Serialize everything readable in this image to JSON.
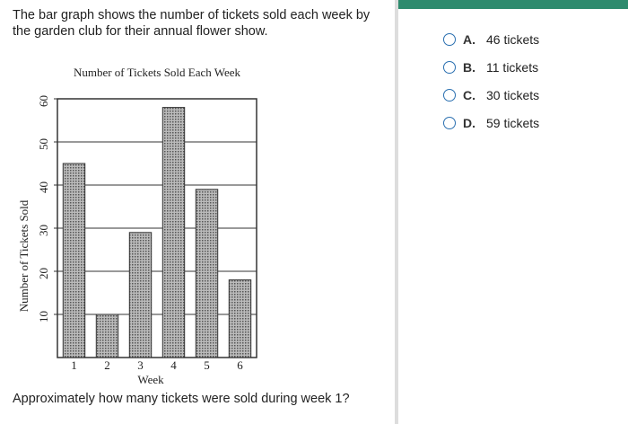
{
  "question": {
    "intro": "The bar graph shows the number of tickets sold each week by the garden club for their annual flower show.",
    "prompt": "Approximately how many tickets were sold during week 1?"
  },
  "chart_data": {
    "type": "bar",
    "title": "Number of Tickets Sold Each Week",
    "x_label": "Week",
    "y_label": "Number of Tickets Sold",
    "categories": [
      "1",
      "2",
      "3",
      "4",
      "5",
      "6"
    ],
    "values": [
      45,
      10,
      29,
      58,
      39,
      18
    ],
    "color": "#999999",
    "ylim": [
      0,
      60
    ],
    "yticks": [
      10,
      20,
      30,
      40,
      50,
      60
    ],
    "grid": true
  },
  "options": [
    {
      "letter": "A.",
      "text": "46 tickets"
    },
    {
      "letter": "B.",
      "text": "11 tickets"
    },
    {
      "letter": "C.",
      "text": "30 tickets"
    },
    {
      "letter": "D.",
      "text": "59 tickets"
    }
  ]
}
